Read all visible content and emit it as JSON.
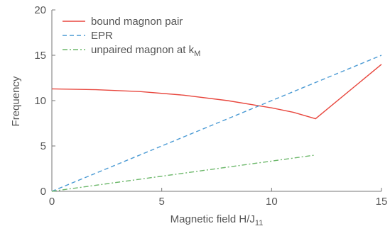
{
  "chart_data": {
    "type": "line",
    "xlabel": {
      "main": "Magnetic field H/J",
      "sub": "11"
    },
    "ylabel": "Frequency",
    "xlim": [
      0,
      15
    ],
    "ylim": [
      0,
      20
    ],
    "xticks": [
      0,
      5,
      10,
      15
    ],
    "yticks": [
      0,
      5,
      10,
      15,
      20
    ],
    "grid": false,
    "legend_position": "top-left",
    "series": [
      {
        "name": "bound magnon pair",
        "color": "#e8473e",
        "style": "solid",
        "x": [
          0,
          2,
          4,
          6,
          8,
          10,
          11,
          12,
          15
        ],
        "y": [
          11.3,
          11.2,
          11.0,
          10.6,
          10.0,
          9.2,
          8.7,
          8.0,
          14.0
        ]
      },
      {
        "name": "EPR",
        "color": "#4a9ad4",
        "style": "dashed",
        "x": [
          0,
          15
        ],
        "y": [
          0,
          15
        ]
      },
      {
        "name": "unpaired magnon at k",
        "name_sub": "M",
        "color": "#6db86b",
        "style": "dashdot",
        "x": [
          0,
          12
        ],
        "y": [
          0,
          4
        ]
      }
    ]
  }
}
